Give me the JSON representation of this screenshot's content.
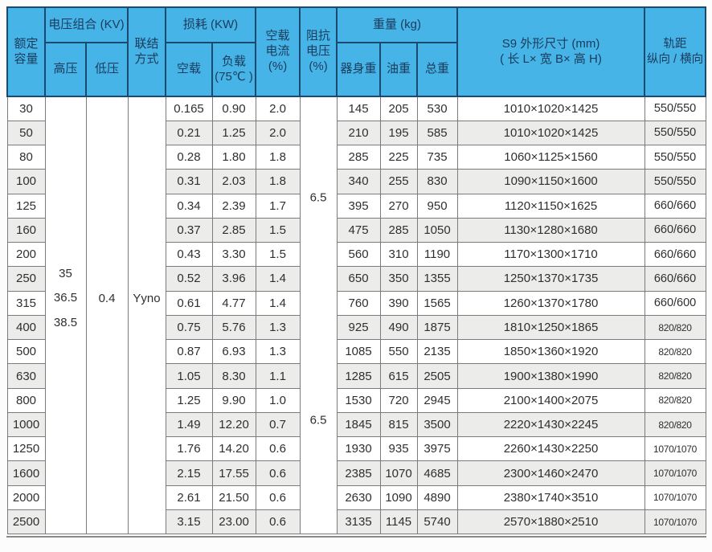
{
  "table": {
    "headers": {
      "capacity": "额定\n容量",
      "voltage_group": "电压组合 (KV)",
      "hv": "高压",
      "lv": "低压",
      "connection": "联结\n方式",
      "loss": "损耗 (KW)",
      "no_load_loss": "空载",
      "load_loss": "负载\n(75℃ )",
      "no_load_current": "空载\n电流\n(%)",
      "impedance_voltage": "阻抗\n电压\n(%)",
      "weight": "重量 (kg)",
      "body_weight": "器身重",
      "oil_weight": "油重",
      "total_weight": "总重",
      "dimensions": "S9 外形尺寸 (mm)\n( 长 L× 宽 B× 高 H)",
      "rail_gauge": "轨距\n纵向 / 横向"
    },
    "merged": {
      "hv_values": [
        "35",
        "36.5",
        "38.5"
      ],
      "lv_value": "0.4",
      "connection_value": "Yyno",
      "impedance_values": [
        "6.5",
        "6.5"
      ]
    },
    "rows": [
      [
        "30",
        "0.165",
        "0.90",
        "2.0",
        "145",
        "205",
        "530",
        "1010×1020×1425",
        "550/550"
      ],
      [
        "50",
        "0.21",
        "1.25",
        "2.0",
        "210",
        "195",
        "585",
        "1010×1020×1425",
        "550/550"
      ],
      [
        "80",
        "0.28",
        "1.80",
        "1.8",
        "285",
        "225",
        "735",
        "1060×1125×1560",
        "550/550"
      ],
      [
        "100",
        "0.31",
        "2.03",
        "1.8",
        "340",
        "255",
        "830",
        "1090×1150×1600",
        "550/550"
      ],
      [
        "125",
        "0.34",
        "2.39",
        "1.7",
        "395",
        "270",
        "950",
        "1120×1150×1625",
        "660/660"
      ],
      [
        "160",
        "0.37",
        "2.85",
        "1.5",
        "475",
        "285",
        "1050",
        "1130×1280×1680",
        "660/660"
      ],
      [
        "200",
        "0.43",
        "3.30",
        "1.5",
        "560",
        "310",
        "1190",
        "1170×1300×1710",
        "660/660"
      ],
      [
        "250",
        "0.52",
        "3.96",
        "1.4",
        "650",
        "350",
        "1355",
        "1250×1370×1735",
        "660/660"
      ],
      [
        "315",
        "0.61",
        "4.77",
        "1.4",
        "760",
        "390",
        "1565",
        "1260×1370×1780",
        "660/600"
      ],
      [
        "400",
        "0.75",
        "5.76",
        "1.3",
        "925",
        "490",
        "1875",
        "1810×1250×1865",
        "820/820"
      ],
      [
        "500",
        "0.87",
        "6.93",
        "1.3",
        "1085",
        "550",
        "2135",
        "1850×1360×1920",
        "820/820"
      ],
      [
        "630",
        "1.05",
        "8.30",
        "1.1",
        "1285",
        "615",
        "2505",
        "1900×1380×1990",
        "820/820"
      ],
      [
        "800",
        "1.25",
        "9.90",
        "1.0",
        "1530",
        "720",
        "2945",
        "2100×1400×2075",
        "820/820"
      ],
      [
        "1000",
        "1.49",
        "12.20",
        "0.7",
        "1845",
        "815",
        "3500",
        "2220×1430×2245",
        "820/820"
      ],
      [
        "1250",
        "1.76",
        "14.20",
        "0.6",
        "1930",
        "935",
        "3975",
        "2260×1430×2250",
        "1070/1070"
      ],
      [
        "1600",
        "2.15",
        "17.55",
        "0.6",
        "2385",
        "1070",
        "4685",
        "2300×1460×2470",
        "1070/1070"
      ],
      [
        "2000",
        "2.61",
        "21.50",
        "0.6",
        "2630",
        "1090",
        "4890",
        "2380×1740×3510",
        "1070/1070"
      ],
      [
        "2500",
        "3.15",
        "23.00",
        "0.6",
        "3135",
        "1145",
        "5740",
        "2570×1880×2510",
        "1070/1070"
      ]
    ],
    "colors": {
      "header_bg": "#46b4e7",
      "header_border": "#1a4a70",
      "header_text": "#1a3b5c",
      "body_border": "#7b7b7b",
      "stripe_bg": "#ececea",
      "body_text": "#2f2f2f"
    }
  }
}
